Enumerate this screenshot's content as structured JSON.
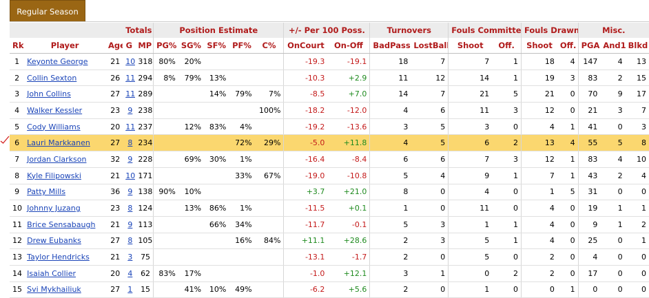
{
  "tabs": [
    "Regular Season"
  ],
  "header_groups": [
    "",
    "Totals",
    "Position Estimate",
    "+/- Per 100 Poss.",
    "Turnovers",
    "Fouls Committed",
    "Fouls Drawn",
    "Misc."
  ],
  "columns": [
    "Rk",
    "Player",
    "Age",
    "G",
    "MP",
    "PG%",
    "SG%",
    "SF%",
    "PF%",
    "C%",
    "OnCourt",
    "On-Off",
    "BadPass",
    "LostBall",
    "Shoot",
    "Off.",
    "Shoot",
    "Off.",
    "PGA",
    "And1",
    "Blkd"
  ],
  "rows": [
    {
      "rk": "1",
      "player": "Keyonte George",
      "age": "21",
      "g": "10",
      "mp": "318",
      "pg": "80%",
      "sg": "20%",
      "sf": "",
      "pf": "",
      "c": "",
      "oncourt": "-19.3",
      "onoff": "-19.1",
      "badpass": "18",
      "lostball": "7",
      "fc_shoot": "7",
      "fc_off": "1",
      "fd_shoot": "18",
      "fd_off": "4",
      "pga": "147",
      "and1": "4",
      "blkd": "13"
    },
    {
      "rk": "2",
      "player": "Collin Sexton",
      "age": "26",
      "g": "11",
      "mp": "294",
      "pg": "8%",
      "sg": "79%",
      "sf": "13%",
      "pf": "",
      "c": "",
      "oncourt": "-10.3",
      "onoff": "+2.9",
      "badpass": "11",
      "lostball": "12",
      "fc_shoot": "14",
      "fc_off": "1",
      "fd_shoot": "19",
      "fd_off": "3",
      "pga": "83",
      "and1": "2",
      "blkd": "15"
    },
    {
      "rk": "3",
      "player": "John Collins",
      "age": "27",
      "g": "11",
      "mp": "289",
      "pg": "",
      "sg": "",
      "sf": "14%",
      "pf": "79%",
      "c": "7%",
      "oncourt": "-8.5",
      "onoff": "+7.0",
      "badpass": "14",
      "lostball": "7",
      "fc_shoot": "21",
      "fc_off": "5",
      "fd_shoot": "21",
      "fd_off": "0",
      "pga": "70",
      "and1": "9",
      "blkd": "17"
    },
    {
      "rk": "4",
      "player": "Walker Kessler",
      "age": "23",
      "g": "9",
      "mp": "238",
      "pg": "",
      "sg": "",
      "sf": "",
      "pf": "",
      "c": "100%",
      "oncourt": "-18.2",
      "onoff": "-12.0",
      "badpass": "4",
      "lostball": "6",
      "fc_shoot": "11",
      "fc_off": "3",
      "fd_shoot": "12",
      "fd_off": "0",
      "pga": "21",
      "and1": "3",
      "blkd": "7"
    },
    {
      "rk": "5",
      "player": "Cody Williams",
      "age": "20",
      "g": "11",
      "mp": "237",
      "pg": "",
      "sg": "12%",
      "sf": "83%",
      "pf": "4%",
      "c": "",
      "oncourt": "-19.2",
      "onoff": "-13.6",
      "badpass": "3",
      "lostball": "5",
      "fc_shoot": "3",
      "fc_off": "0",
      "fd_shoot": "4",
      "fd_off": "1",
      "pga": "41",
      "and1": "0",
      "blkd": "3"
    },
    {
      "rk": "6",
      "player": "Lauri Markkanen",
      "age": "27",
      "g": "8",
      "mp": "234",
      "pg": "",
      "sg": "",
      "sf": "",
      "pf": "72%",
      "c": "29%",
      "oncourt": "-5.0",
      "onoff": "+11.8",
      "badpass": "4",
      "lostball": "5",
      "fc_shoot": "6",
      "fc_off": "2",
      "fd_shoot": "13",
      "fd_off": "4",
      "pga": "55",
      "and1": "5",
      "blkd": "8",
      "highlight": true
    },
    {
      "rk": "7",
      "player": "Jordan Clarkson",
      "age": "32",
      "g": "9",
      "mp": "228",
      "pg": "",
      "sg": "69%",
      "sf": "30%",
      "pf": "1%",
      "c": "",
      "oncourt": "-16.4",
      "onoff": "-8.4",
      "badpass": "6",
      "lostball": "6",
      "fc_shoot": "7",
      "fc_off": "3",
      "fd_shoot": "12",
      "fd_off": "1",
      "pga": "83",
      "and1": "4",
      "blkd": "10"
    },
    {
      "rk": "8",
      "player": "Kyle Filipowski",
      "age": "21",
      "g": "10",
      "mp": "171",
      "pg": "",
      "sg": "",
      "sf": "",
      "pf": "33%",
      "c": "67%",
      "oncourt": "-19.0",
      "onoff": "-10.8",
      "badpass": "5",
      "lostball": "4",
      "fc_shoot": "9",
      "fc_off": "1",
      "fd_shoot": "7",
      "fd_off": "1",
      "pga": "43",
      "and1": "2",
      "blkd": "4"
    },
    {
      "rk": "9",
      "player": "Patty Mills",
      "age": "36",
      "g": "9",
      "mp": "138",
      "pg": "90%",
      "sg": "10%",
      "sf": "",
      "pf": "",
      "c": "",
      "oncourt": "+3.7",
      "onoff": "+21.0",
      "badpass": "8",
      "lostball": "0",
      "fc_shoot": "4",
      "fc_off": "0",
      "fd_shoot": "1",
      "fd_off": "5",
      "pga": "31",
      "and1": "0",
      "blkd": "0"
    },
    {
      "rk": "10",
      "player": "Johnny Juzang",
      "age": "23",
      "g": "8",
      "mp": "124",
      "pg": "",
      "sg": "13%",
      "sf": "86%",
      "pf": "1%",
      "c": "",
      "oncourt": "-11.5",
      "onoff": "+0.1",
      "badpass": "1",
      "lostball": "0",
      "fc_shoot": "11",
      "fc_off": "0",
      "fd_shoot": "4",
      "fd_off": "0",
      "pga": "19",
      "and1": "1",
      "blkd": "1"
    },
    {
      "rk": "11",
      "player": "Brice Sensabaugh",
      "age": "21",
      "g": "9",
      "mp": "113",
      "pg": "",
      "sg": "",
      "sf": "66%",
      "pf": "34%",
      "c": "",
      "oncourt": "-11.7",
      "onoff": "-0.1",
      "badpass": "5",
      "lostball": "3",
      "fc_shoot": "1",
      "fc_off": "1",
      "fd_shoot": "4",
      "fd_off": "0",
      "pga": "9",
      "and1": "1",
      "blkd": "2"
    },
    {
      "rk": "12",
      "player": "Drew Eubanks",
      "age": "27",
      "g": "8",
      "mp": "105",
      "pg": "",
      "sg": "",
      "sf": "",
      "pf": "16%",
      "c": "84%",
      "oncourt": "+11.1",
      "onoff": "+28.6",
      "badpass": "2",
      "lostball": "3",
      "fc_shoot": "5",
      "fc_off": "1",
      "fd_shoot": "4",
      "fd_off": "0",
      "pga": "25",
      "and1": "0",
      "blkd": "1"
    },
    {
      "rk": "13",
      "player": "Taylor Hendricks",
      "age": "21",
      "g": "3",
      "mp": "75",
      "pg": "",
      "sg": "",
      "sf": "",
      "pf": "",
      "c": "",
      "oncourt": "-13.1",
      "onoff": "-1.7",
      "badpass": "2",
      "lostball": "0",
      "fc_shoot": "5",
      "fc_off": "0",
      "fd_shoot": "2",
      "fd_off": "0",
      "pga": "4",
      "and1": "0",
      "blkd": "0"
    },
    {
      "rk": "14",
      "player": "Isaiah Collier",
      "age": "20",
      "g": "4",
      "mp": "62",
      "pg": "83%",
      "sg": "17%",
      "sf": "",
      "pf": "",
      "c": "",
      "oncourt": "-1.0",
      "onoff": "+12.1",
      "badpass": "3",
      "lostball": "1",
      "fc_shoot": "0",
      "fc_off": "2",
      "fd_shoot": "2",
      "fd_off": "0",
      "pga": "17",
      "and1": "0",
      "blkd": "0"
    },
    {
      "rk": "15",
      "player": "Svi Mykhailiuk",
      "age": "27",
      "g": "1",
      "mp": "15",
      "pg": "",
      "sg": "41%",
      "sf": "10%",
      "pf": "49%",
      "c": "",
      "oncourt": "-6.2",
      "onoff": "+5.6",
      "badpass": "2",
      "lostball": "0",
      "fc_shoot": "1",
      "fc_off": "0",
      "fd_shoot": "0",
      "fd_off": "1",
      "pga": "0",
      "and1": "0",
      "blkd": "0"
    }
  ],
  "colors": {
    "tab_bg": "#9a6614",
    "header_text": "#b01b1b",
    "link": "#1a44b8",
    "negative": "#c41919",
    "positive": "#1e8a1e",
    "highlight_row": "#fbd76f",
    "annotation_mark": "#d42020"
  },
  "icons": {
    "annotation": "checkmark-icon"
  }
}
